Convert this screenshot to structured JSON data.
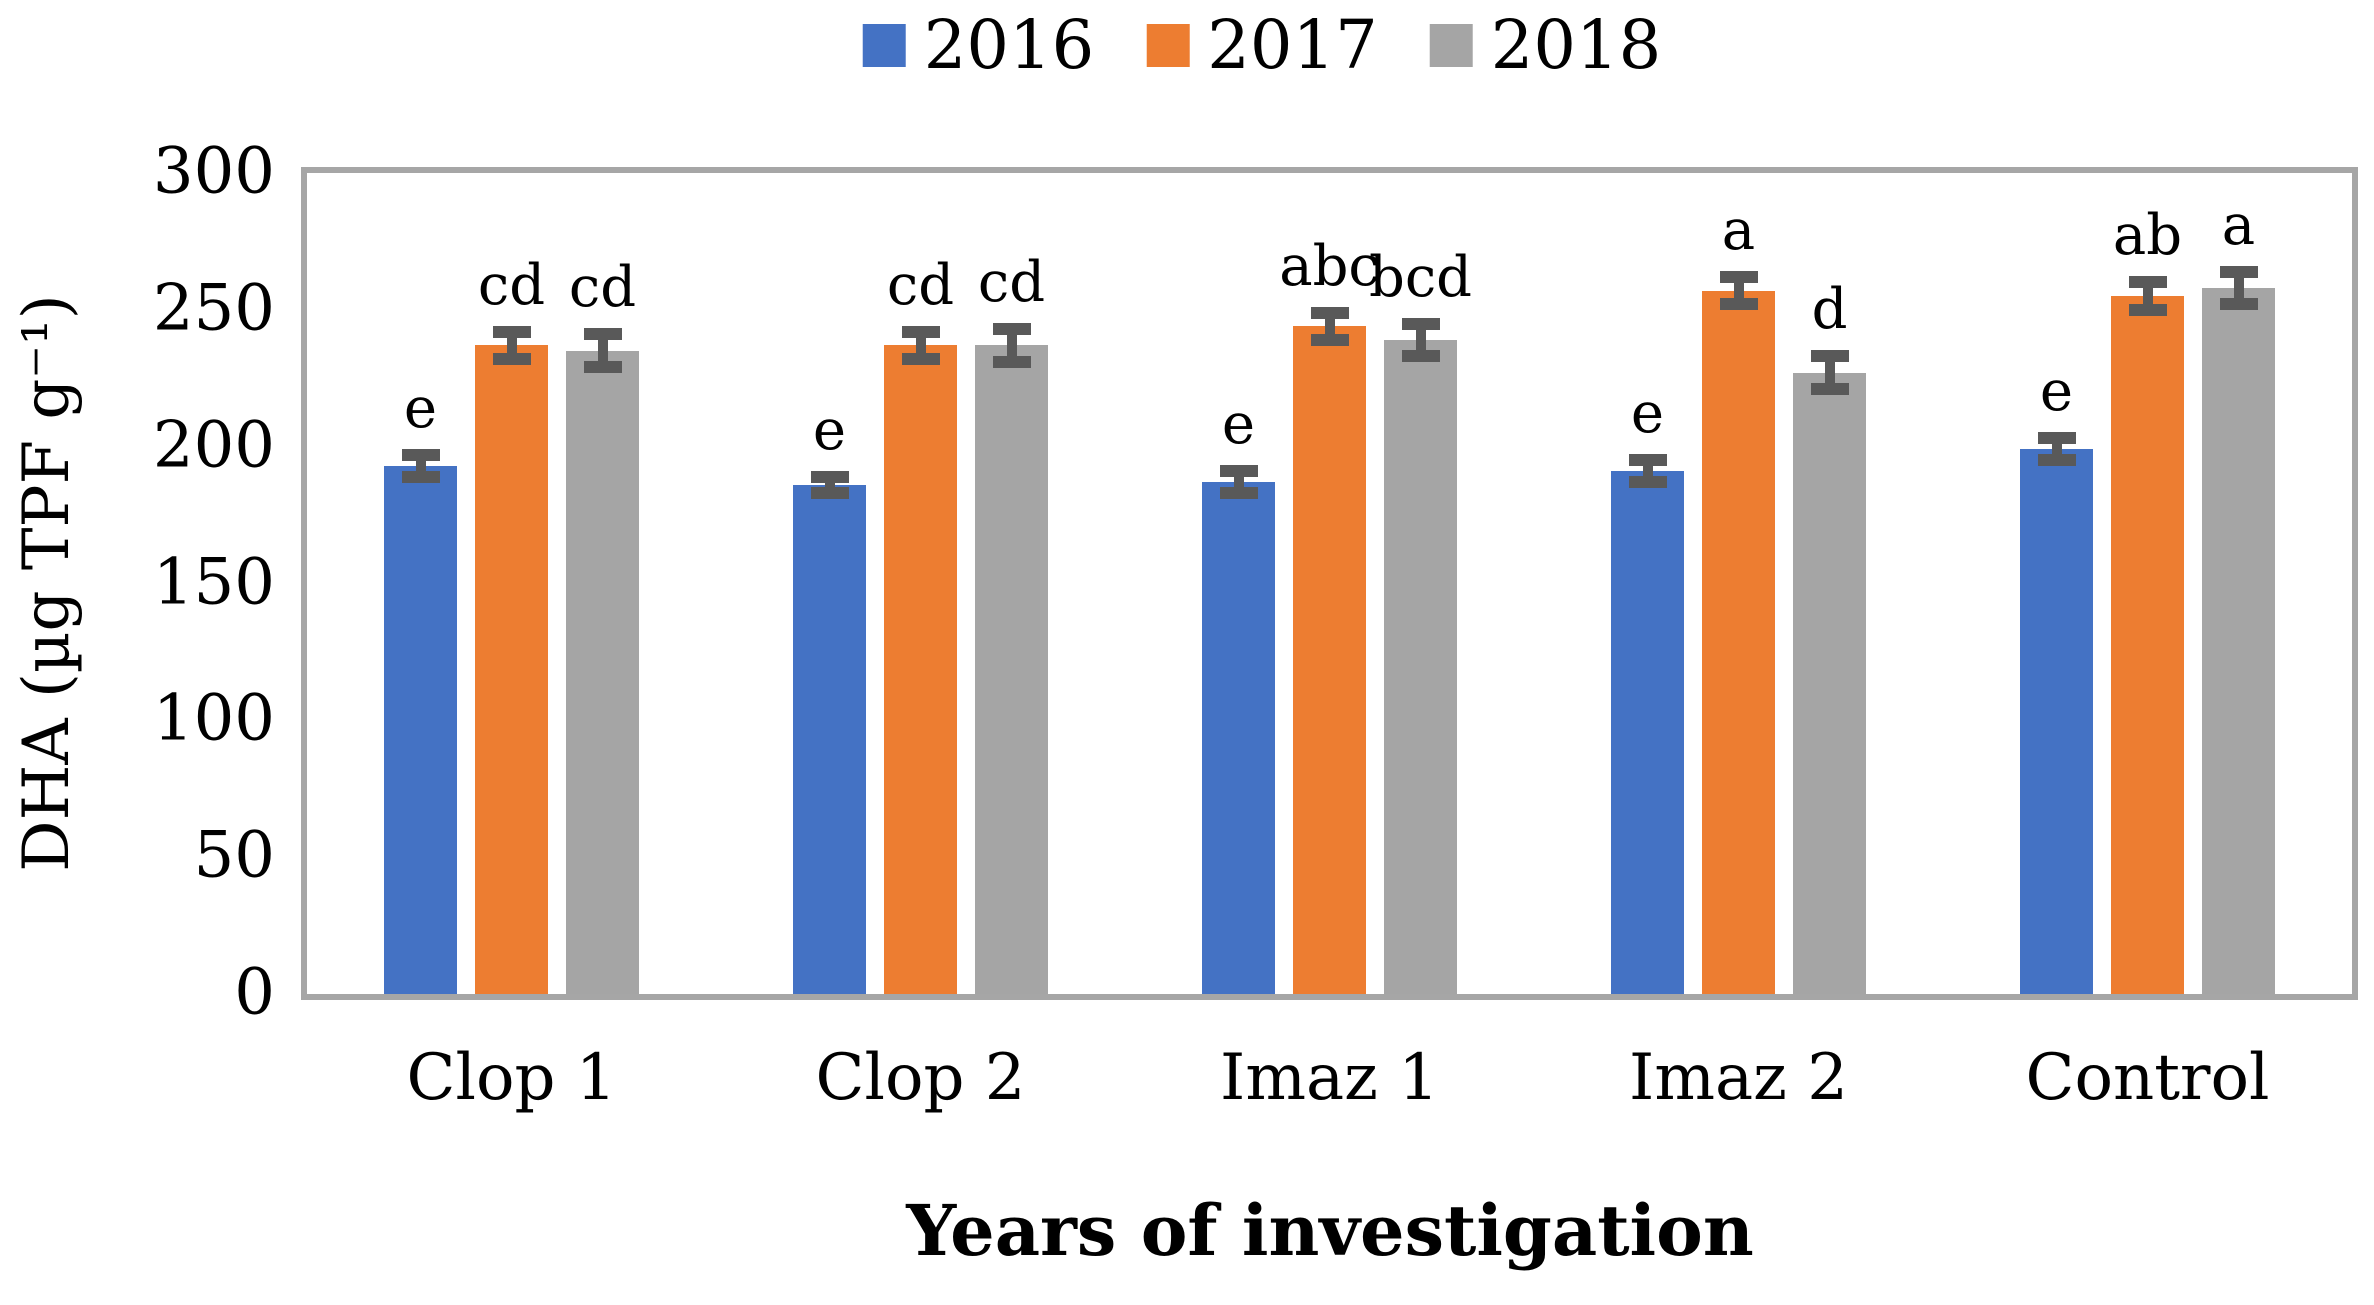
{
  "figure": {
    "background": "#ffffff"
  },
  "legend": {
    "items": [
      {
        "label": "2016",
        "color": "#4472C4"
      },
      {
        "label": "2017",
        "color": "#ED7D31"
      },
      {
        "label": "2018",
        "color": "#A5A5A5"
      }
    ]
  },
  "chart_data": {
    "type": "bar",
    "title": "",
    "xlabel": "Years of investigation",
    "ylabel": "DHA (µg TPF g⁻¹)",
    "categories": [
      "Clop 1",
      "Clop 2",
      "Imaz 1",
      "Imaz 2",
      "Control"
    ],
    "series": [
      {
        "name": "2016",
        "color": "#4472C4",
        "values": [
          193,
          186,
          187,
          191,
          199
        ],
        "errors": [
          4,
          3,
          4,
          4,
          4
        ],
        "letters": [
          "e",
          "e",
          "e",
          "e",
          "e"
        ]
      },
      {
        "name": "2017",
        "color": "#ED7D31",
        "values": [
          237,
          237,
          244,
          257,
          255
        ],
        "errors": [
          5,
          5,
          5,
          5,
          5
        ],
        "letters": [
          "cd",
          "cd",
          "abc",
          "a",
          "ab"
        ]
      },
      {
        "name": "2018",
        "color": "#A5A5A5",
        "values": [
          235,
          237,
          239,
          227,
          258
        ],
        "errors": [
          6,
          6,
          6,
          6,
          6
        ],
        "letters": [
          "cd",
          "cd",
          "bcd",
          "d",
          "a"
        ]
      }
    ],
    "ylim": [
      0,
      300
    ],
    "yticks": [
      0,
      50,
      100,
      150,
      200,
      250,
      300
    ],
    "grid": false,
    "legend_position": "top",
    "error_bar_color": "#595959",
    "axis_border_color": "#A6A6A6"
  }
}
